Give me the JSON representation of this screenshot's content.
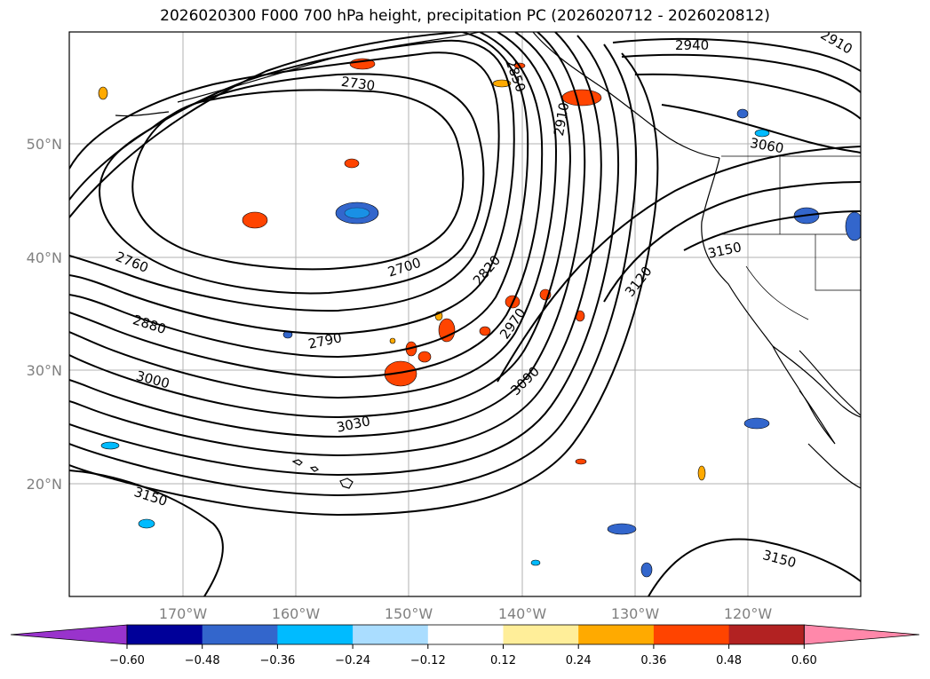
{
  "title": "2026020300 F000 700 hPa height, precipitation PC (2026020712 - 2026020812)",
  "lon_ticks": [
    "170°W",
    "160°W",
    "150°W",
    "140°W",
    "130°W",
    "120°W"
  ],
  "lat_ticks": [
    "50°N",
    "40°N",
    "30°N",
    "20°N"
  ],
  "contour_labels": [
    "2940",
    "2910",
    "2850",
    "2730",
    "3060",
    "2910",
    "2700",
    "2820",
    "2760",
    "3150",
    "3120",
    "2880",
    "2790",
    "2970",
    "3000",
    "3090",
    "3030",
    "3150",
    "3150"
  ],
  "colorbar": {
    "tick_labels": [
      "−0.60",
      "−0.48",
      "−0.36",
      "−0.24",
      "−0.12",
      "0.12",
      "0.24",
      "0.36",
      "0.48",
      "0.60"
    ],
    "colors": [
      "#9933cc",
      "#000099",
      "#3366cc",
      "#00bbff",
      "#aaddff",
      "#ffffff",
      "#ffee99",
      "#ffaa00",
      "#ff4400",
      "#b22222",
      "#ff88aa"
    ]
  }
}
